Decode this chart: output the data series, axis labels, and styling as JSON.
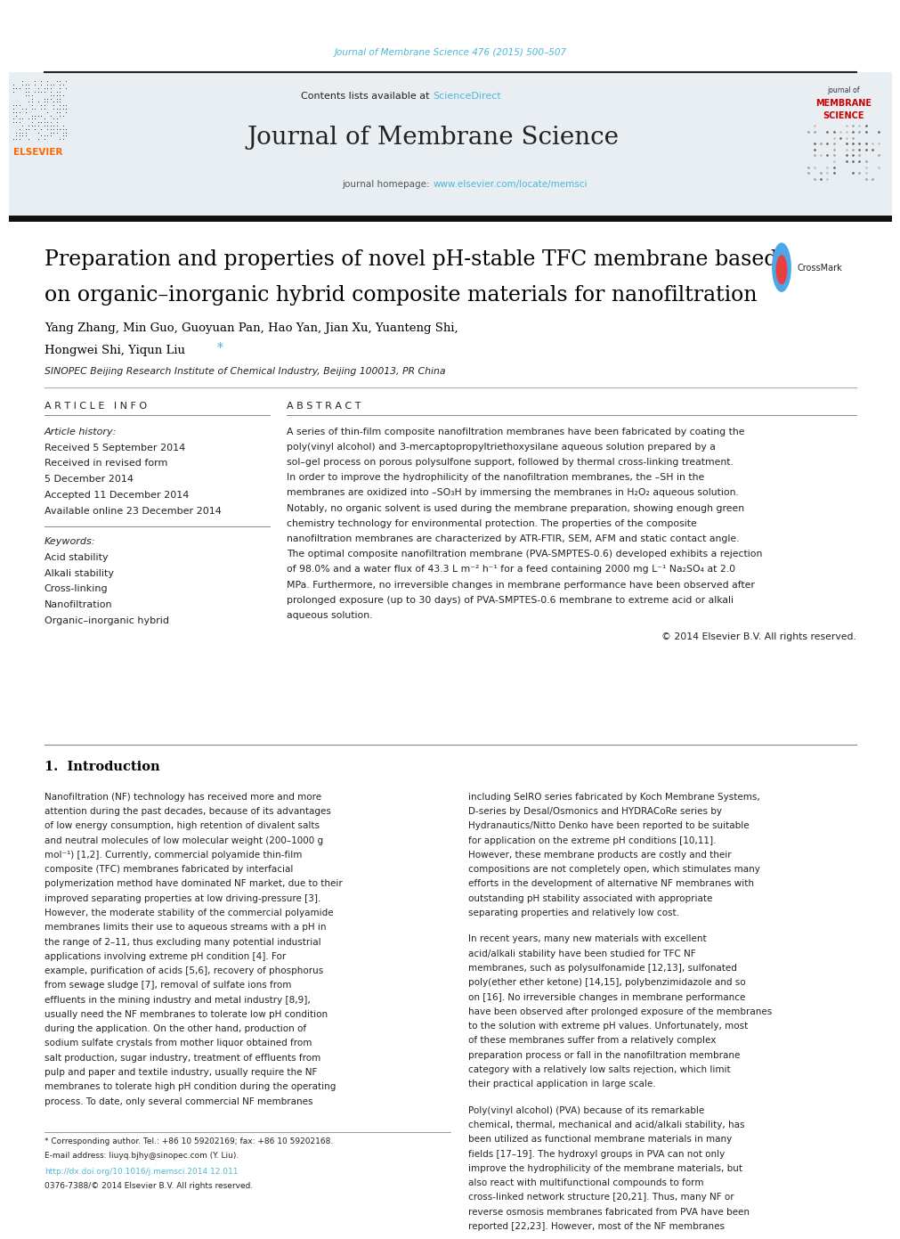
{
  "page_width": 9.92,
  "page_height": 13.23,
  "bg_color": "#ffffff",
  "top_journal_ref": "Journal of Membrane Science 476 (2015) 500–507",
  "top_journal_color": "#4db8d4",
  "header_bg": "#e8eef2",
  "header_contents_text": "Contents lists available at ",
  "header_sciencedirect": "ScienceDirect",
  "journal_title": "Journal of Membrane Science",
  "journal_homepage_prefix": "journal homepage: ",
  "journal_homepage_url": "www.elsevier.com/locate/memsci",
  "article_title_line1": "Preparation and properties of novel pH-stable TFC membrane based",
  "article_title_line2": "on organic–inorganic hybrid composite materials for nanofiltration",
  "article_title_fontsize": 17,
  "authors": "Yang Zhang, Min Guo, Guoyuan Pan, Hao Yan, Jian Xu, Yuanteng Shi,",
  "authors_line2_pre": "Hongwei Shi, Yiqun Liu",
  "affiliation": "SINOPEC Beijing Research Institute of Chemical Industry, Beijing 100013, PR China",
  "article_info_label": "A R T I C L E   I N F O",
  "abstract_label": "A B S T R A C T",
  "article_history_label": "Article history:",
  "received1": "Received 5 September 2014",
  "received2": "Received in revised form",
  "received3": "5 December 2014",
  "accepted": "Accepted 11 December 2014",
  "available": "Available online 23 December 2014",
  "keywords_label": "Keywords:",
  "keywords": [
    "Acid stability",
    "Alkali stability",
    "Cross-linking",
    "Nanofiltration",
    "Organic–inorganic hybrid"
  ],
  "abstract_text": "A series of thin-film composite nanofiltration membranes have been fabricated by coating the poly(vinyl alcohol) and 3-mercaptopropyltriethoxysilane aqueous solution prepared by a sol–gel process on porous polysulfone support, followed by thermal cross-linking treatment. In order to improve the hydrophilicity of the nanofiltration membranes, the –SH in the membranes are oxidized into –SO₃H by immersing the membranes in H₂O₂ aqueous solution. Notably, no organic solvent is used during the membrane preparation, showing enough green chemistry technology for environmental protection. The properties of the composite nanofiltration membranes are characterized by ATR-FTIR, SEM, AFM and static contact angle. The optimal composite nanofiltration membrane (PVA-SMPTES-0.6) developed exhibits a rejection of 98.0% and a water flux of 43.3 L m⁻² h⁻¹ for a feed containing 2000 mg L⁻¹ Na₂SO₄ at 2.0 MPa. Furthermore, no irreversible changes in membrane performance have been observed after prolonged exposure (up to 30 days) of PVA-SMPTES-0.6 membrane to extreme acid or alkali aqueous solution.",
  "copyright": "© 2014 Elsevier B.V. All rights reserved.",
  "intro_heading": "1.  Introduction",
  "intro_col1": "    Nanofiltration (NF) technology has received more and more attention during the past decades, because of its advantages of low energy consumption, high retention of divalent salts and neutral molecules of low molecular weight (200–1000 g mol⁻¹)  [1,2]. Currently, commercial polyamide thin-film composite (TFC) membranes fabricated by interfacial polymerization method have dominated NF market, due to their improved separating properties at low driving-pressure [3]. However, the moderate stability of the commercial polyamide membranes limits their use to aqueous streams with a pH in the range of 2–11, thus excluding many potential industrial applications involving extreme pH condition [4]. For example, purification of acids [5,6], recovery of phosphorus from sewage sludge [7], removal of sulfate ions from effluents in the mining industry and metal industry [8,9], usually need the NF membranes to tolerate low pH condition during the application. On the other hand, production of sodium sulfate crystals from mother liquor obtained from salt production, sugar industry, treatment of effluents from pulp and paper and textile industry, usually require the NF membranes to tolerate high pH condition during the operating process. To date, only several commercial NF membranes",
  "intro_col2_p1": "including SelRO series fabricated by Koch Membrane Systems, D-series by Desal/Osmonics and HYDRACoRe series by Hydranautics/Nitto Denko have been reported to be suitable for application on the extreme pH conditions [10,11]. However, these membrane products are costly and their compositions are not completely open, which stimulates many efforts in the development of alternative NF membranes with outstanding pH stability associated with appropriate separating properties and relatively low cost.",
  "intro_col2_p2": "In recent years, many new materials with excellent acid/alkali stability have been studied for TFC NF membranes, such as polysulfonamide [12,13], sulfonated poly(ether ether ketone) [14,15], polybenzimidazole and so on [16]. No irreversible changes in membrane performance have been observed after prolonged exposure of the membranes to the solution with extreme pH values. Unfortunately, most of these membranes suffer from a relatively complex preparation process or fall in the nanofiltration membrane category with a relatively low salts rejection, which limit their practical application in large scale.",
  "intro_col2_p3": "Poly(vinyl alcohol) (PVA) because of its remarkable chemical, thermal, mechanical and acid/alkali stability, has been utilized as functional membrane materials in many fields [17–19]. The hydroxyl groups in PVA can not only improve the hydrophilicity of the membrane materials, but also react with multifunctional compounds to form cross-linked network structure [20,21]. Thus, many NF or reverse osmosis membranes fabricated from PVA have been reported [22,23]. However, most of the NF membranes",
  "footer_note": "* Corresponding author. Tel.: +86 10 59202169; fax: +86 10 59202168.",
  "footer_email": "E-mail address: liuyq.bjhy@sinopec.com (Y. Liu).",
  "footer_doi": "http://dx.doi.org/10.1016/j.memsci.2014.12.011",
  "footer_issn": "0376-7388/© 2014 Elsevier B.V. All rights reserved.",
  "elsevier_color": "#FF6600",
  "crossmark_red": "#e84040",
  "crossmark_blue": "#4da6e8",
  "ref_color": "#4db8d4",
  "black": "#000000",
  "dark_gray": "#222222",
  "medium_gray": "#555555",
  "light_gray": "#888888"
}
